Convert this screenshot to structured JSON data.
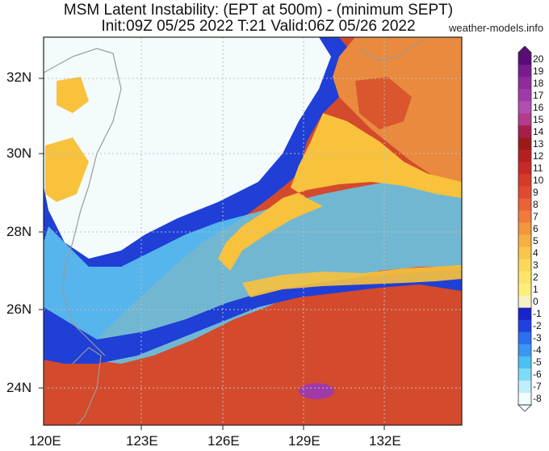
{
  "header": {
    "title_line1": "MSM Latent Instability: (EPT at 500m) - (minimum SEPT)",
    "title_line2": "Init:09Z 05/25 2022  T:21 Valid:06Z 05/26 2022",
    "credit": "weather-models.info"
  },
  "axes": {
    "lat_labels": [
      "32N",
      "30N",
      "28N",
      "26N",
      "24N"
    ],
    "lon_labels": [
      "120E",
      "123E",
      "126E",
      "129E",
      "132E"
    ]
  },
  "colorbar": {
    "ticks": [
      "20",
      "19",
      "18",
      "17",
      "16",
      "15",
      "14",
      "13",
      "12",
      "11",
      "10",
      "9",
      "8",
      "7",
      "6",
      "5",
      "4",
      "3",
      "2",
      "1",
      "0",
      "-1",
      "-2",
      "-3",
      "-4",
      "-5",
      "-6",
      "-7",
      "-8"
    ],
    "colors": [
      "#5b0a7a",
      "#7a1a8f",
      "#8f2a9e",
      "#a03aa8",
      "#b04fb0",
      "#b13c8a",
      "#a81d4a",
      "#9c1a1a",
      "#b42020",
      "#c82828",
      "#d53a2a",
      "#e04a30",
      "#ea6236",
      "#f07a3a",
      "#f4963e",
      "#f7af42",
      "#f9c64a",
      "#fbd85a",
      "#fce56a",
      "#fdef7a",
      "#f5f2c8",
      "#1a22c8",
      "#2040e0",
      "#2b6ef0",
      "#3a96f0",
      "#4cc0f2",
      "#80dcf6",
      "#c0eefb",
      "#f2fbfe"
    ]
  },
  "colors": {
    "ocean_warm": "#d44a2c",
    "unstable_yellow": "#f8c23c",
    "stable_blue": "#1f3fd6",
    "dry_white": "#f6fbfd",
    "orange_north": "#e98a3e"
  }
}
